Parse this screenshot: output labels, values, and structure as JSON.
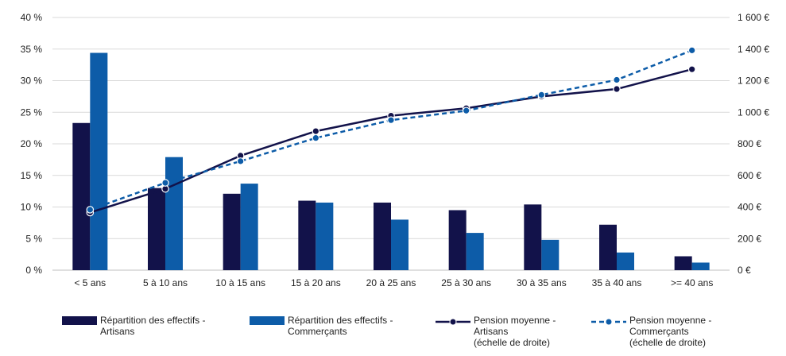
{
  "chart_data": {
    "type": "bar",
    "categories": [
      "< 5 ans",
      "5 à 10 ans",
      "10 à 15 ans",
      "15 à 20 ans",
      "20 à 25 ans",
      "25 à 30 ans",
      "30 à 35 ans",
      "35 à 40 ans",
      ">= 40 ans"
    ],
    "y_left": {
      "ticks": [
        "0 %",
        "5 %",
        "10 %",
        "15 %",
        "20 %",
        "25 %",
        "30 %",
        "35 %",
        "40 %"
      ],
      "ylim": [
        0,
        40
      ]
    },
    "y_right": {
      "ticks": [
        "0 €",
        "200 €",
        "400 €",
        "600 €",
        "800 €",
        "1 000 €",
        "1 200 €",
        "1 400 €",
        "1 600 €"
      ],
      "ylim": [
        0,
        1600
      ]
    },
    "series": [
      {
        "name_lines": [
          "Répartition des effectifs -",
          "Artisans"
        ],
        "kind": "bar",
        "axis": "left",
        "color": "#12124a",
        "values": [
          23.3,
          13.0,
          12.1,
          11.0,
          10.7,
          9.5,
          10.4,
          7.2,
          2.2
        ]
      },
      {
        "name_lines": [
          "Répartition des effectifs -",
          "Commerçants"
        ],
        "kind": "bar",
        "axis": "left",
        "color": "#0d5ca8",
        "values": [
          34.4,
          17.9,
          13.7,
          10.7,
          8.0,
          5.9,
          4.8,
          2.8,
          1.2
        ]
      },
      {
        "name_lines": [
          "Pension moyenne -",
          "Artisans",
          "(échelle de droite)"
        ],
        "kind": "line",
        "axis": "right",
        "color": "#12124a",
        "dash": false,
        "values": [
          365,
          515,
          725,
          880,
          978,
          1025,
          1100,
          1147,
          1272
        ]
      },
      {
        "name_lines": [
          "Pension moyenne -",
          "Commerçants",
          "(échelle de droite)"
        ],
        "kind": "line",
        "axis": "right",
        "color": "#0d5ca8",
        "dash": true,
        "values": [
          383,
          553,
          690,
          837,
          950,
          1010,
          1110,
          1205,
          1392
        ]
      }
    ],
    "grid": true,
    "legend": "bottom"
  }
}
